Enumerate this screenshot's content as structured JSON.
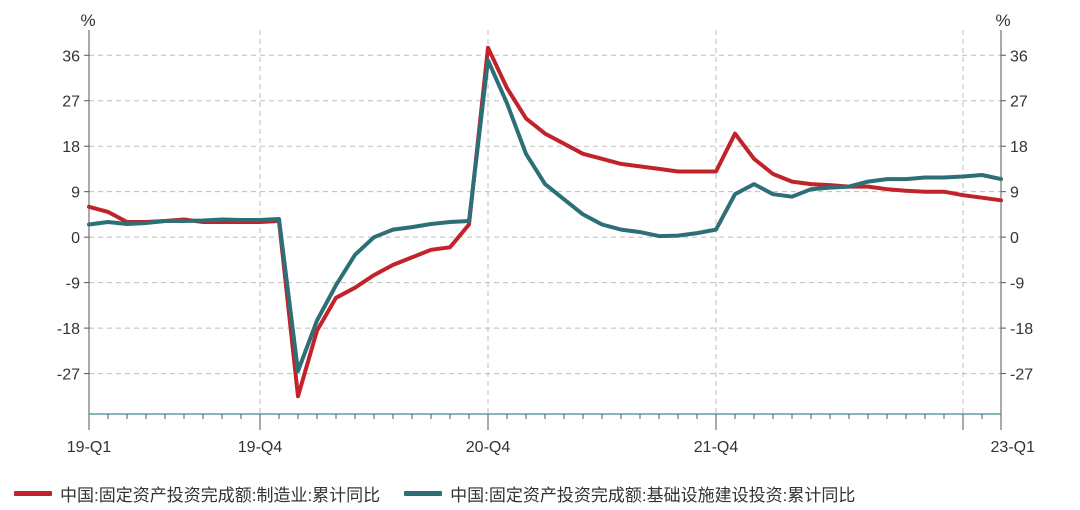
{
  "chart_data": {
    "type": "line",
    "y_unit_left": "%",
    "y_unit_right": "%",
    "ylim": [
      -35,
      41
    ],
    "yticks": [
      36,
      27,
      18,
      9,
      0,
      -9,
      -18,
      -27
    ],
    "x_range": [
      0,
      48
    ],
    "xtick_labels": [
      {
        "x": 0,
        "label": "19-Q1"
      },
      {
        "x": 9,
        "label": "19-Q4"
      },
      {
        "x": 21,
        "label": "20-Q4"
      },
      {
        "x": 33,
        "label": "21-Q4"
      },
      {
        "x": 48,
        "label": "23-Q1"
      }
    ],
    "x_major_ticks": [
      0,
      9,
      21,
      33,
      46,
      48
    ],
    "x_minor_ticks": [
      1,
      2,
      3,
      4,
      5,
      6,
      7,
      8,
      10,
      11,
      12,
      13,
      14,
      15,
      16,
      17,
      18,
      19,
      20,
      22,
      23,
      24,
      25,
      26,
      27,
      28,
      29,
      30,
      31,
      32,
      34,
      35,
      36,
      37,
      38,
      39,
      40,
      41,
      42,
      43,
      44,
      45,
      47
    ],
    "series": [
      {
        "name": "中国:固定资产投资完成额:制造业:累计同比",
        "color": "#c1232b",
        "x": [
          0,
          1,
          2,
          3,
          4,
          5,
          6,
          7,
          8,
          9,
          10,
          11,
          12,
          13,
          14,
          15,
          16,
          17,
          18,
          19,
          20,
          21,
          22,
          23,
          24,
          25,
          26,
          27,
          28,
          29,
          30,
          31,
          32,
          33,
          34,
          35,
          36,
          37,
          38,
          39,
          40,
          41,
          42,
          43,
          44,
          45,
          46,
          47,
          48
        ],
        "values": [
          6.0,
          5.0,
          3.0,
          3.0,
          3.2,
          3.5,
          3.0,
          3.0,
          3.0,
          3.0,
          3.2,
          -31.5,
          -18.5,
          -12.0,
          -10.0,
          -7.5,
          -5.5,
          -4.0,
          -2.5,
          -2.0,
          2.5,
          37.5,
          29.5,
          23.5,
          20.5,
          18.5,
          16.5,
          15.5,
          14.5,
          14.0,
          13.5,
          13.0,
          13.0,
          13.0,
          20.5,
          15.5,
          12.5,
          11.0,
          10.5,
          10.3,
          10.0,
          10.0,
          9.5,
          9.2,
          9.0,
          9.0,
          8.3,
          7.8,
          7.3
        ]
      },
      {
        "name": "中国:固定资产投资完成额:基础设施建设投资:累计同比",
        "color": "#2c6f76",
        "x": [
          0,
          1,
          2,
          3,
          4,
          5,
          6,
          7,
          8,
          9,
          10,
          11,
          12,
          13,
          14,
          15,
          16,
          17,
          18,
          19,
          20,
          21,
          22,
          23,
          24,
          25,
          26,
          27,
          28,
          29,
          30,
          31,
          32,
          33,
          34,
          35,
          36,
          37,
          38,
          39,
          40,
          41,
          42,
          43,
          44,
          45,
          46,
          47,
          48
        ],
        "values": [
          2.5,
          3.0,
          2.6,
          2.8,
          3.2,
          3.2,
          3.3,
          3.5,
          3.4,
          3.4,
          3.6,
          -26.5,
          -16.5,
          -9.5,
          -3.5,
          0.0,
          1.5,
          2.0,
          2.6,
          3.0,
          3.2,
          35.0,
          26.5,
          16.5,
          10.5,
          7.5,
          4.5,
          2.5,
          1.5,
          1.0,
          0.2,
          0.3,
          0.8,
          1.5,
          8.5,
          10.5,
          8.5,
          8.0,
          9.5,
          9.8,
          10.0,
          11.0,
          11.5,
          11.5,
          11.8,
          11.8,
          12.0,
          12.3,
          11.5
        ]
      }
    ],
    "grid": true,
    "legend_position": "bottom-left"
  }
}
